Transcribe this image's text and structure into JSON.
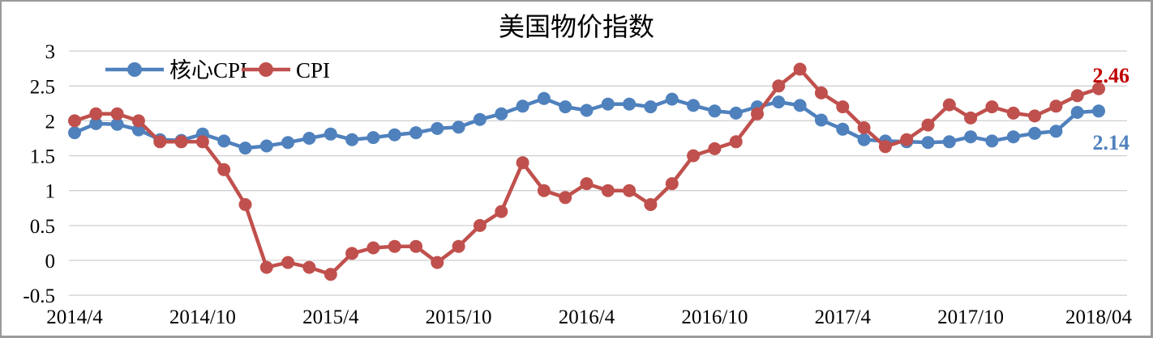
{
  "title": "美国物价指数",
  "chart_data": {
    "type": "line",
    "title": "美国物价指数",
    "xlabel": "",
    "ylabel": "",
    "ylim": [
      -0.5,
      3
    ],
    "ytick_step": 0.5,
    "grid": "horizontal",
    "legend_position": "top-inside-left",
    "y_tick_labels": [
      "3",
      "2.5",
      "2",
      "1.5",
      "1",
      "0.5",
      "0",
      "-0.5"
    ],
    "y_tick_values": [
      3,
      2.5,
      2,
      1.5,
      1,
      0.5,
      0,
      -0.5
    ],
    "x_tick_labels": [
      "2014/4",
      "2014/10",
      "2015/4",
      "2015/10",
      "2016/4",
      "2016/10",
      "2017/4",
      "2017/10",
      "2018/04"
    ],
    "x_tick_indices": [
      0,
      6,
      12,
      18,
      24,
      30,
      36,
      42,
      48
    ],
    "x": [
      "2014/4",
      "2014/5",
      "2014/6",
      "2014/7",
      "2014/8",
      "2014/9",
      "2014/10",
      "2014/11",
      "2014/12",
      "2015/1",
      "2015/2",
      "2015/3",
      "2015/4",
      "2015/5",
      "2015/6",
      "2015/7",
      "2015/8",
      "2015/9",
      "2015/10",
      "2015/11",
      "2015/12",
      "2016/1",
      "2016/2",
      "2016/3",
      "2016/4",
      "2016/5",
      "2016/6",
      "2016/7",
      "2016/8",
      "2016/9",
      "2016/10",
      "2016/11",
      "2016/12",
      "2017/1",
      "2017/2",
      "2017/3",
      "2017/4",
      "2017/5",
      "2017/6",
      "2017/7",
      "2017/8",
      "2017/9",
      "2017/10",
      "2017/11",
      "2017/12",
      "2018/1",
      "2018/2",
      "2018/3",
      "2018/4"
    ],
    "series": [
      {
        "name": "核心CPI",
        "color": "#4F81BD",
        "values": [
          1.83,
          1.96,
          1.95,
          1.87,
          1.73,
          1.72,
          1.81,
          1.71,
          1.61,
          1.64,
          1.69,
          1.75,
          1.81,
          1.73,
          1.76,
          1.8,
          1.83,
          1.89,
          1.91,
          2.02,
          2.1,
          2.21,
          2.32,
          2.2,
          2.15,
          2.24,
          2.24,
          2.2,
          2.31,
          2.22,
          2.14,
          2.11,
          2.2,
          2.27,
          2.22,
          2.01,
          1.88,
          1.73,
          1.71,
          1.7,
          1.69,
          1.7,
          1.77,
          1.71,
          1.77,
          1.82,
          1.85,
          2.12,
          2.14
        ]
      },
      {
        "name": "CPI",
        "color": "#C0504D",
        "values": [
          2.0,
          2.1,
          2.1,
          2.0,
          1.7,
          1.7,
          1.7,
          1.3,
          0.8,
          -0.1,
          -0.03,
          -0.1,
          -0.2,
          0.1,
          0.18,
          0.2,
          0.2,
          -0.03,
          0.2,
          0.5,
          0.7,
          1.4,
          1.0,
          0.9,
          1.1,
          1.0,
          1.0,
          0.8,
          1.1,
          1.5,
          1.6,
          1.7,
          2.1,
          2.5,
          2.74,
          2.4,
          2.2,
          1.9,
          1.63,
          1.73,
          1.94,
          2.23,
          2.04,
          2.2,
          2.11,
          2.07,
          2.21,
          2.36,
          2.46
        ]
      }
    ],
    "end_labels": [
      {
        "series": "CPI",
        "text": "2.46",
        "color": "#C00000"
      },
      {
        "series": "核心CPI",
        "text": "2.14",
        "color": "#4F81BD"
      }
    ]
  },
  "legend": {
    "items": [
      {
        "label": "核心CPI",
        "color": "#4F81BD"
      },
      {
        "label": "CPI",
        "color": "#C0504D"
      }
    ]
  }
}
